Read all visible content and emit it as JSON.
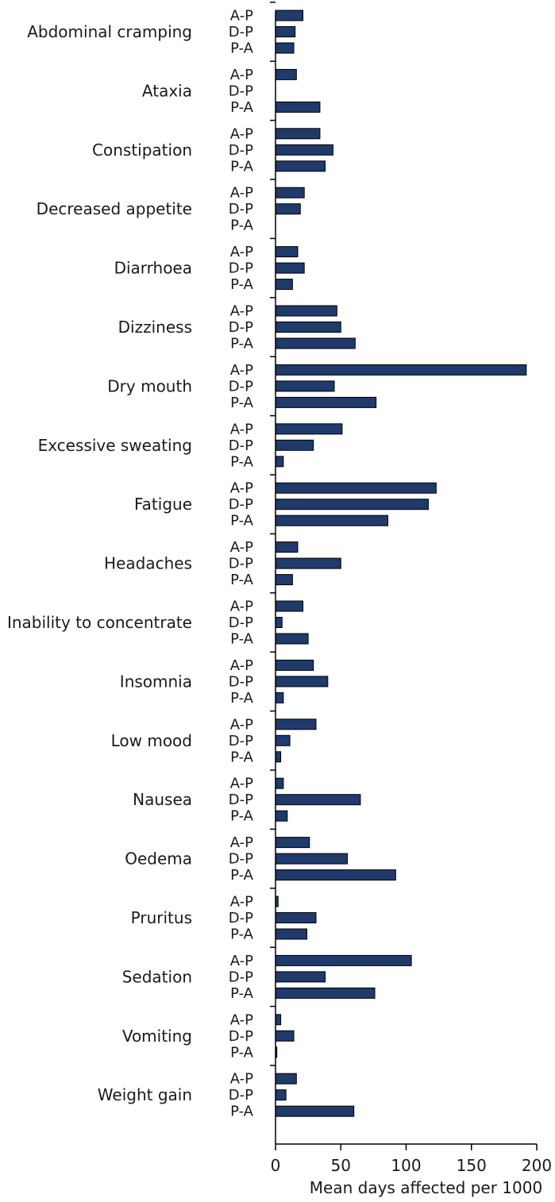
{
  "chart_data": {
    "type": "bar",
    "orientation": "horizontal",
    "title": "",
    "xlabel": "Mean days affected per 1000",
    "ylabel": "",
    "xlim": [
      0,
      200
    ],
    "xticks": [
      0,
      50,
      100,
      150,
      200
    ],
    "grid": false,
    "bar_color": "#1f3a6b",
    "groups": [
      "A-P",
      "D-P",
      "P-A"
    ],
    "categories": [
      "Abdominal cramping",
      "Ataxia",
      "Constipation",
      "Decreased appetite",
      "Diarrhoea",
      "Dizziness",
      "Dry mouth",
      "Excessive sweating",
      "Fatigue",
      "Headaches",
      "Inability to concentrate",
      "Insomnia",
      "Low mood",
      "Nausea",
      "Oedema",
      "Pruritus",
      "Sedation",
      "Vomiting",
      "Weight gain"
    ],
    "values": [
      [
        21,
        15,
        14
      ],
      [
        16,
        0,
        34
      ],
      [
        34,
        44,
        38
      ],
      [
        22,
        19,
        0
      ],
      [
        17,
        22,
        13
      ],
      [
        47,
        50,
        61
      ],
      [
        192,
        45,
        77
      ],
      [
        51,
        29,
        6
      ],
      [
        123,
        117,
        86
      ],
      [
        17,
        50,
        13
      ],
      [
        21,
        5,
        25
      ],
      [
        29,
        40,
        6
      ],
      [
        31,
        11,
        4
      ],
      [
        6,
        65,
        9
      ],
      [
        26,
        55,
        92
      ],
      [
        2,
        31,
        24
      ],
      [
        104,
        38,
        76
      ],
      [
        4,
        14,
        1
      ],
      [
        16,
        8,
        60
      ]
    ]
  }
}
